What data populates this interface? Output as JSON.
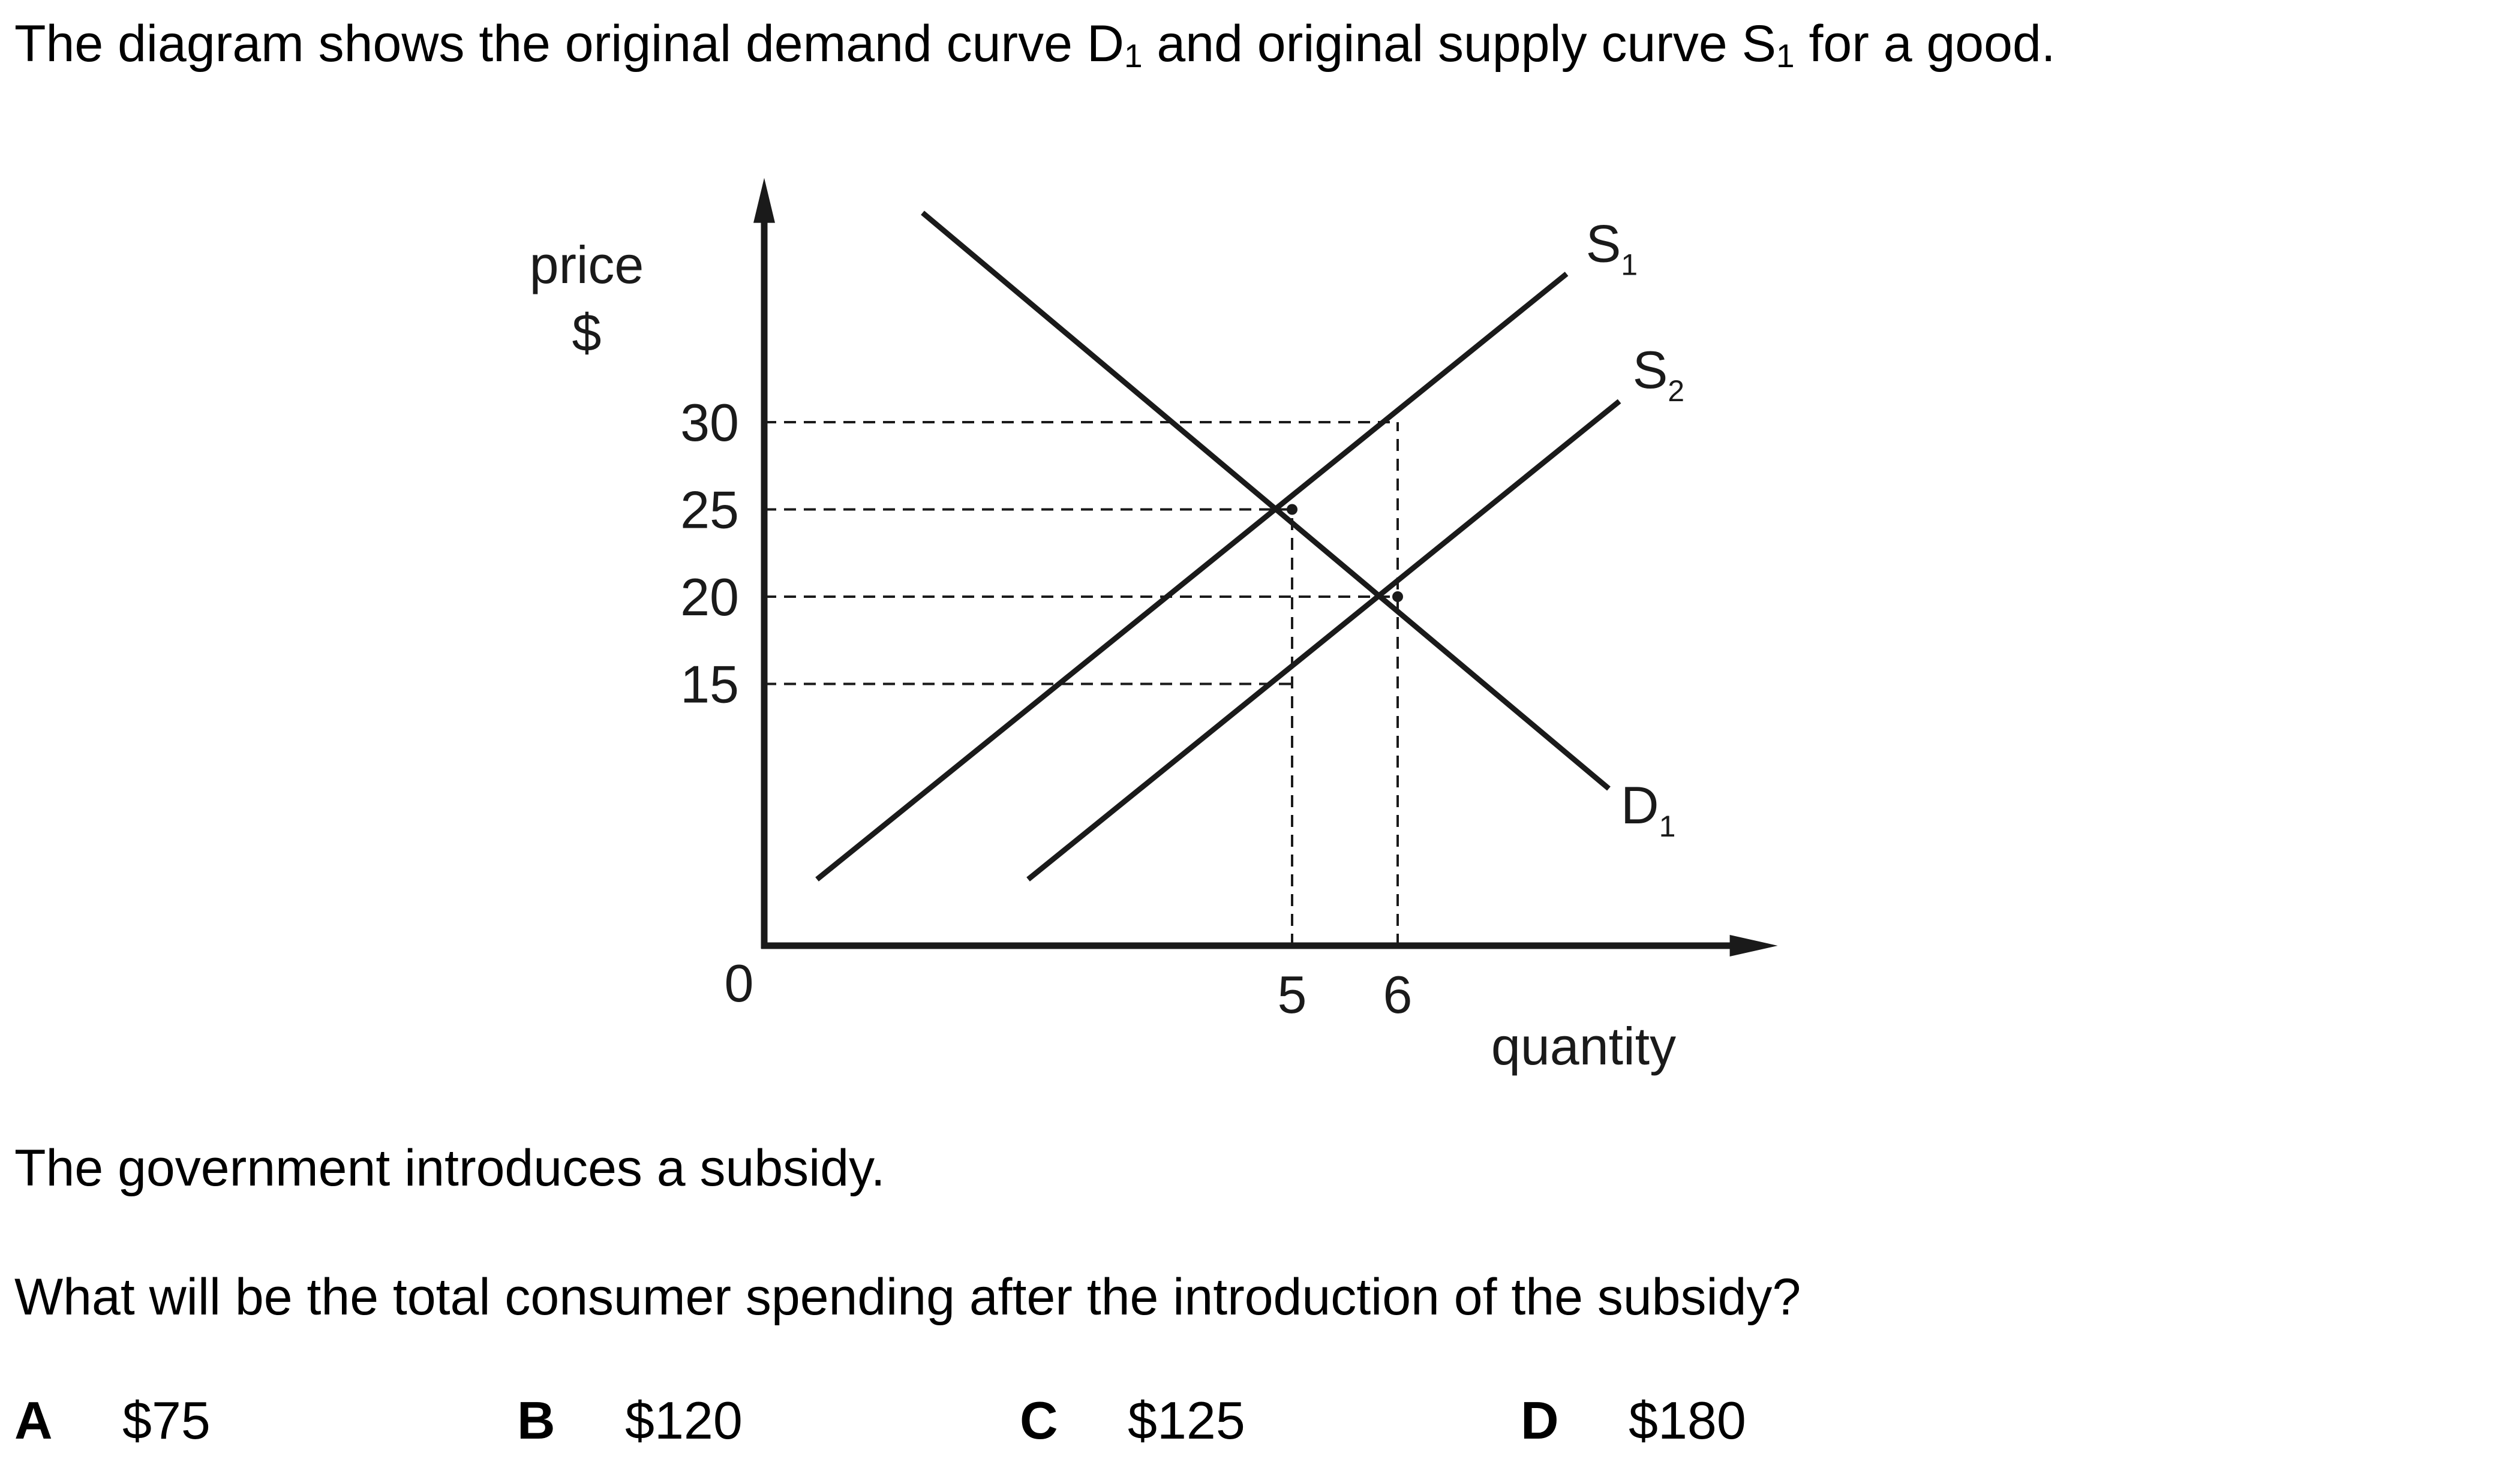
{
  "intro": {
    "before_d": "The diagram shows the original demand curve D",
    "d_sub": "1",
    "middle": " and original supply curve S",
    "s_sub": "1",
    "after": " for a good."
  },
  "statement": "The government introduces a subsidy.",
  "question": "What will be the total consumer spending after the introduction of the subsidy?",
  "options": [
    {
      "letter": "A",
      "value": "$75"
    },
    {
      "letter": "B",
      "value": "$120"
    },
    {
      "letter": "C",
      "value": "$125"
    },
    {
      "letter": "D",
      "value": "$180"
    }
  ],
  "chart_data": {
    "type": "line",
    "xlabel": "quantity",
    "ylabel": "price",
    "ylabel_unit": "$",
    "origin_label": "0",
    "x_ticks": [
      5,
      6
    ],
    "y_ticks": [
      30,
      25,
      20,
      15
    ],
    "xlim": [
      0,
      9.6
    ],
    "ylim": [
      0,
      44
    ],
    "grid": false,
    "legend": "none",
    "series": [
      {
        "name": "S",
        "sub": "1",
        "x": [
          0.5,
          7.6
        ],
        "y": [
          3.8,
          38.5
        ]
      },
      {
        "name": "S",
        "sub": "2",
        "x": [
          2.5,
          8.1
        ],
        "y": [
          3.8,
          31.2
        ]
      },
      {
        "name": "D",
        "sub": "1",
        "x": [
          1.5,
          8.0
        ],
        "y": [
          42.0,
          9.0
        ]
      }
    ],
    "guides": [
      {
        "from": [
          0,
          30
        ],
        "to": [
          6,
          30
        ]
      },
      {
        "from": [
          0,
          25
        ],
        "to": [
          5,
          25
        ]
      },
      {
        "from": [
          0,
          20
        ],
        "to": [
          6,
          20
        ]
      },
      {
        "from": [
          0,
          15
        ],
        "to": [
          5,
          15
        ]
      },
      {
        "from": [
          5,
          0
        ],
        "to": [
          5,
          25
        ]
      },
      {
        "from": [
          6,
          0
        ],
        "to": [
          6,
          30
        ]
      }
    ],
    "points": [
      {
        "x": 5,
        "y": 25
      },
      {
        "x": 6,
        "y": 20
      }
    ],
    "colors": {
      "ink": "#1a1a1a"
    }
  }
}
